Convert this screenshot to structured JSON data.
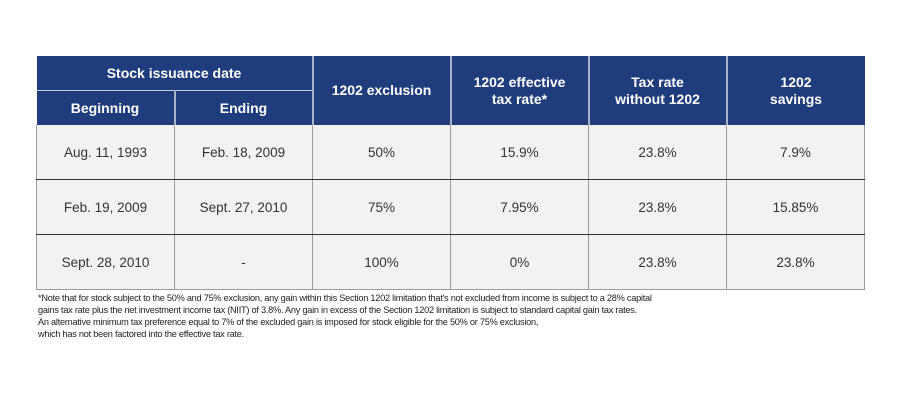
{
  "header": {
    "group": "Stock issuance date",
    "beginning": "Beginning",
    "ending": "Ending",
    "exclusion": "1202 exclusion",
    "effective_l1": "1202 effective",
    "effective_l2": "tax rate*",
    "without_l1": "Tax rate",
    "without_l2": "without 1202",
    "savings_l1": "1202",
    "savings_l2": "savings"
  },
  "rows": [
    [
      "Aug. 11, 1993",
      "Feb. 18, 2009",
      "50%",
      "15.9%",
      "23.8%",
      "7.9%"
    ],
    [
      "Feb. 19, 2009",
      "Sept. 27, 2010",
      "75%",
      "7.95%",
      "23.8%",
      "15.85%"
    ],
    [
      "Sept. 28, 2010",
      "-",
      "100%",
      "0%",
      "23.8%",
      "23.8%"
    ]
  ],
  "footnote": [
    "*Note that for stock subject to the 50% and 75% exclusion, any gain within this Section 1202 limitation that's not excluded from income is subject to a 28% capital",
    "gains tax rate plus the net investment income tax (NIIT) of 3.8%. Any gain in excess of the Section 1202 limitation is subject to standard capital gain tax rates.",
    "An alternative minimum tax preference equal to 7% of the excluded gain is imposed for stock eligible for the 50% or 75% exclusion,",
    "which has not been factored into the effective tax rate."
  ],
  "colors": {
    "header_bg": "#1f3d7c",
    "body_bg": "#f1f2f1"
  }
}
